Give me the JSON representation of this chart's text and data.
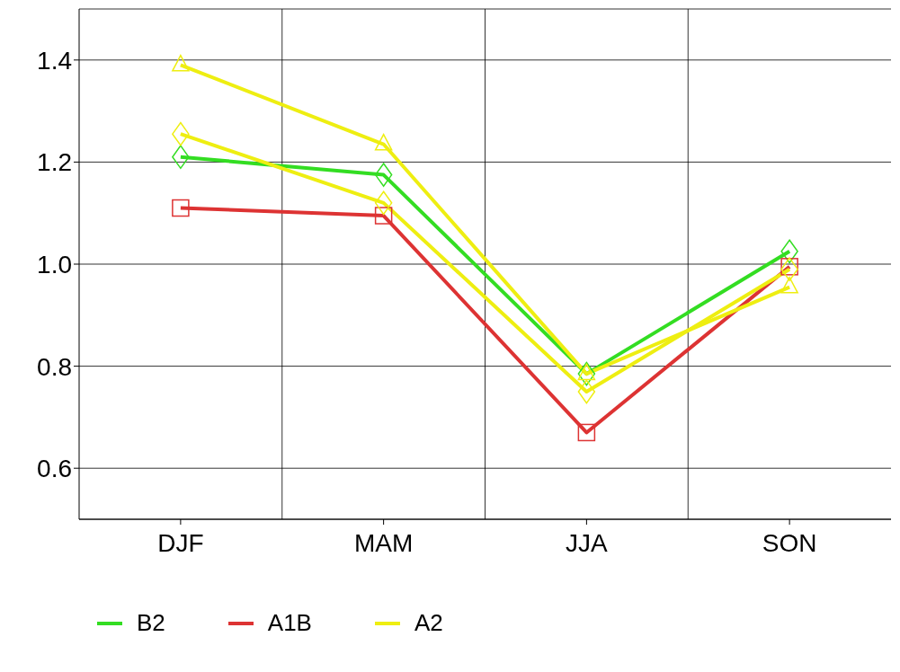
{
  "chart_data": {
    "type": "line",
    "categories": [
      "DJF",
      "MAM",
      "JJA",
      "SON"
    ],
    "ylim": [
      0.5,
      1.5
    ],
    "yticks": [
      0.6,
      0.8,
      {
        "value": 1,
        "label": "1.0"
      },
      1.2,
      1.4
    ],
    "grid": true,
    "legend": "bottom",
    "series": [
      {
        "name": "B2",
        "color": "#33dd22",
        "marker": "diamond",
        "values": [
          1.21,
          1.175,
          0.785,
          1.025
        ]
      },
      {
        "name": "A1B",
        "color": "#dd3333",
        "marker": "square",
        "values": [
          1.11,
          1.095,
          0.67,
          0.995
        ]
      },
      {
        "name": "A2",
        "color": "#eeee11",
        "marker": "triangle",
        "values": [
          1.39,
          1.235,
          0.785,
          0.955
        ]
      },
      {
        "color": "#eeee11",
        "marker": "diamond",
        "values": [
          1.255,
          1.12,
          0.75,
          0.99
        ]
      }
    ]
  }
}
